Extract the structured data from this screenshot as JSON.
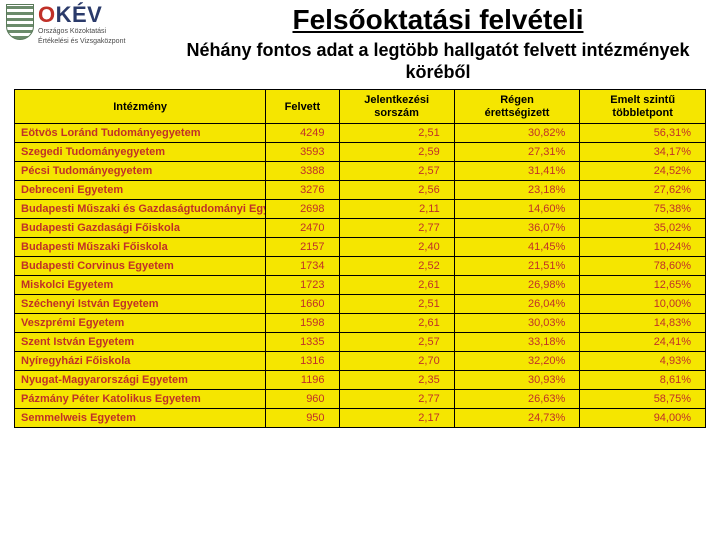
{
  "logo": {
    "brand_first": "O",
    "brand_rest": "KÉV",
    "sub1": "Országos Közoktatási",
    "sub2": "Értékelési és Vizsgaközpont"
  },
  "titles": {
    "main": "Felsőoktatási felvételi",
    "sub": "Néhány fontos adat a legtöbb hallgatót felvett intézmények köréből"
  },
  "table": {
    "columns": [
      "Intézmény",
      "Felvett",
      "Jelentkezési sorszám",
      "Régen érettségizett",
      "Emelt szintű többletpont"
    ],
    "rows": [
      [
        "Eötvös Loránd Tudományegyetem",
        "4249",
        "2,51",
        "30,82%",
        "56,31%"
      ],
      [
        "Szegedi Tudományegyetem",
        "3593",
        "2,59",
        "27,31%",
        "34,17%"
      ],
      [
        "Pécsi Tudományegyetem",
        "3388",
        "2,57",
        "31,41%",
        "24,52%"
      ],
      [
        "Debreceni Egyetem",
        "3276",
        "2,56",
        "23,18%",
        "27,62%"
      ],
      [
        "Budapesti Műszaki és Gazdaságtudományi Egyetem",
        "2698",
        "2,11",
        "14,60%",
        "75,38%"
      ],
      [
        "Budapesti Gazdasági Főiskola",
        "2470",
        "2,77",
        "36,07%",
        "35,02%"
      ],
      [
        "Budapesti Műszaki Főiskola",
        "2157",
        "2,40",
        "41,45%",
        "10,24%"
      ],
      [
        "Budapesti Corvinus Egyetem",
        "1734",
        "2,52",
        "21,51%",
        "78,60%"
      ],
      [
        "Miskolci Egyetem",
        "1723",
        "2,61",
        "26,98%",
        "12,65%"
      ],
      [
        "Széchenyi István Egyetem",
        "1660",
        "2,51",
        "26,04%",
        "10,00%"
      ],
      [
        "Veszprémi Egyetem",
        "1598",
        "2,61",
        "30,03%",
        "14,83%"
      ],
      [
        "Szent István Egyetem",
        "1335",
        "2,57",
        "33,18%",
        "24,41%"
      ],
      [
        "Nyíregyházi Főiskola",
        "1316",
        "2,70",
        "32,20%",
        "4,93%"
      ],
      [
        "Nyugat-Magyarországi Egyetem",
        "1196",
        "2,35",
        "30,93%",
        "8,61%"
      ],
      [
        "Pázmány Péter Katolikus Egyetem",
        "960",
        "2,77",
        "26,63%",
        "58,75%"
      ],
      [
        "Semmelweis Egyetem",
        "950",
        "2,17",
        "24,73%",
        "94,00%"
      ]
    ]
  },
  "style": {
    "table_bg": "#f5e600",
    "text_red": "#c03028",
    "border": "#000000"
  }
}
